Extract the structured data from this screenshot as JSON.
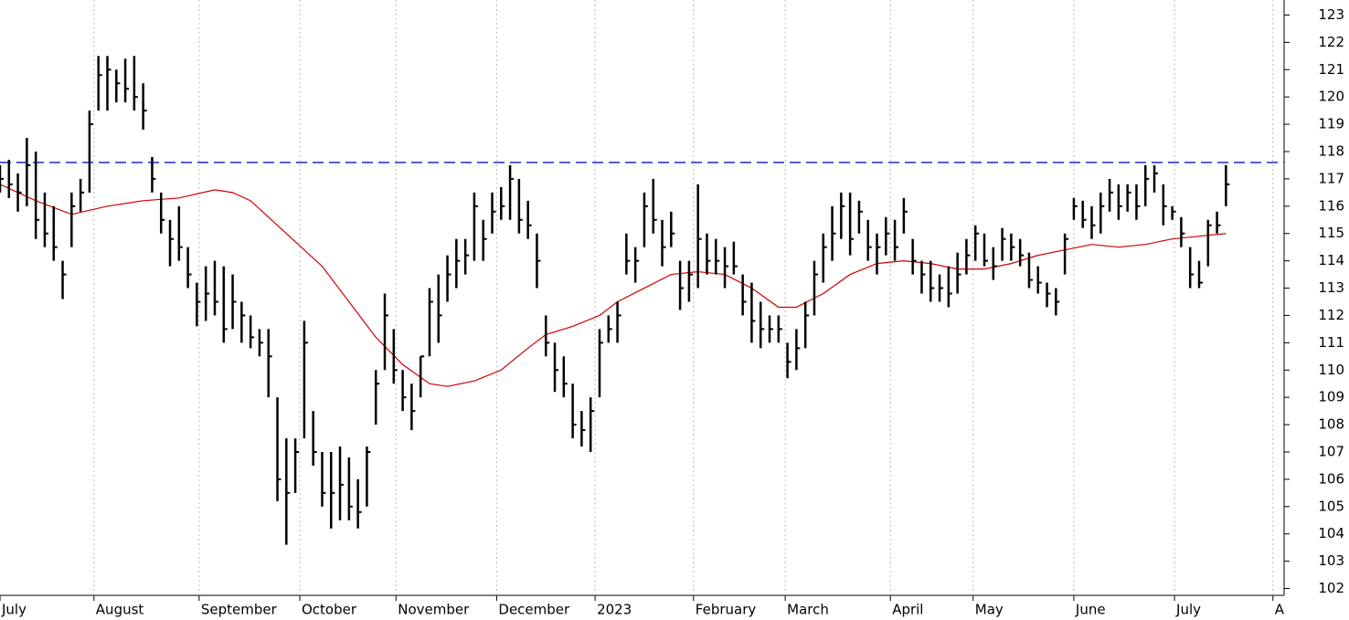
{
  "chart_data": {
    "type": "ohlc",
    "x": [
      0,
      2,
      4,
      6,
      8,
      10,
      12,
      14,
      16,
      18,
      20,
      22,
      24,
      26,
      28,
      30,
      32,
      34,
      36,
      38,
      40,
      42,
      44,
      46,
      48,
      50,
      52,
      54,
      56,
      58,
      60,
      62,
      64,
      66,
      68,
      70,
      72,
      74,
      76,
      78,
      80,
      82,
      84,
      86,
      88,
      90,
      92,
      94,
      96,
      98,
      100,
      102,
      104,
      106,
      108,
      110,
      112,
      114,
      116,
      118,
      120,
      122,
      124,
      126,
      128,
      130,
      132,
      134,
      136,
      138,
      140,
      142,
      144,
      146,
      148,
      150,
      152,
      154,
      156,
      158,
      160,
      162,
      164,
      166,
      168,
      170,
      172,
      174,
      176,
      178,
      180,
      182,
      184,
      186,
      188,
      190,
      192,
      194,
      196,
      198,
      200,
      202,
      204,
      206,
      208,
      210,
      212,
      214,
      216,
      218,
      220,
      222,
      224,
      226,
      228,
      230,
      232,
      234,
      236,
      238,
      240,
      242,
      244,
      246,
      248,
      250,
      252,
      254,
      256,
      258,
      260,
      262,
      264,
      266,
      268,
      270,
      272,
      274
    ],
    "high": [
      117.5,
      117.7,
      117.2,
      118.5,
      118,
      116.5,
      116,
      114,
      116.5,
      117,
      119.5,
      121.5,
      121.5,
      121,
      121.4,
      121.5,
      120.5,
      117.8,
      116.5,
      115.5,
      116,
      114.5,
      113.2,
      113.8,
      114,
      113.8,
      113.5,
      112.5,
      112,
      111.5,
      111.5,
      109,
      107.5,
      107.5,
      111.8,
      108.5,
      107,
      107,
      107.2,
      106.8,
      106,
      107.2,
      110,
      112.8,
      111.5,
      110,
      109.5,
      110.5,
      113,
      113.5,
      114.2,
      114.8,
      114.8,
      116.5,
      115.5,
      116.5,
      116.7,
      117.5,
      117,
      116.2,
      115,
      112,
      111,
      110.5,
      109.5,
      108.5,
      109,
      111.5,
      112,
      112.5,
      115,
      114.5,
      116.5,
      117,
      115.5,
      115.8,
      114,
      114,
      116.8,
      115,
      114.8,
      114.5,
      114.7,
      113.5,
      113.2,
      112.5,
      112,
      112,
      111,
      111.5,
      112.5,
      114,
      115,
      116,
      116.5,
      116.5,
      116.2,
      115.5,
      115,
      115.6,
      115.5,
      116.3,
      114.8,
      114,
      114,
      113.5,
      113.8,
      114.3,
      114.8,
      115.3,
      115,
      114.5,
      115.2,
      115,
      114.8,
      114.3,
      113.8,
      113.2,
      113,
      115,
      116.3,
      116.2,
      116,
      116.5,
      117,
      116.8,
      116.8,
      116.8,
      117.5,
      117.5,
      116.8,
      116,
      115.6,
      114.5,
      114,
      115.5,
      115.8,
      117.5
    ],
    "low": [
      116.5,
      116.3,
      115.8,
      116,
      114.8,
      114.5,
      114,
      112.6,
      114.5,
      115.8,
      116.5,
      119.5,
      119.5,
      119.8,
      119.8,
      119.5,
      118.8,
      116.5,
      115,
      113.8,
      114,
      113,
      111.6,
      111.8,
      112,
      111,
      111.5,
      111,
      110.8,
      110.5,
      109,
      105.2,
      103.6,
      105.5,
      107.5,
      106.5,
      105,
      104.2,
      104.5,
      104.5,
      104.2,
      105,
      108,
      110,
      109.5,
      108.5,
      107.8,
      109,
      110.5,
      111,
      112.5,
      113,
      113.5,
      114,
      114,
      115,
      115.5,
      115.5,
      115,
      114.8,
      113,
      110.5,
      109.2,
      109,
      107.5,
      107.2,
      107,
      109,
      111,
      111,
      113.5,
      113.2,
      114.5,
      115,
      113.8,
      114.5,
      112.2,
      112.5,
      113,
      113.5,
      113.5,
      113,
      113.5,
      112,
      111,
      110.8,
      111,
      111,
      109.7,
      110,
      110.8,
      112,
      113.2,
      114,
      114.8,
      114.2,
      115,
      114,
      113.5,
      114.2,
      114,
      115,
      113.5,
      112.8,
      112.5,
      112.5,
      112.3,
      112.8,
      113.5,
      114,
      113.8,
      113.3,
      114,
      114,
      113.8,
      113,
      112.8,
      112.3,
      112,
      113.5,
      115.5,
      115.2,
      114.8,
      115,
      115.8,
      115.5,
      115.8,
      115.5,
      116,
      116.5,
      115.3,
      115.5,
      114.5,
      113,
      113,
      113.8,
      115,
      116
    ],
    "close": [
      117,
      116.8,
      116.5,
      117.5,
      115.5,
      115,
      114.5,
      113.5,
      116,
      116.5,
      119,
      120.8,
      121,
      120.5,
      120.3,
      120,
      119.5,
      117,
      115.5,
      114.8,
      114.5,
      113.5,
      112.5,
      112.8,
      112.5,
      111.5,
      112.5,
      112,
      111.2,
      111,
      110.5,
      106,
      105.5,
      107,
      111,
      107,
      105.5,
      105.5,
      105.8,
      105,
      104.8,
      107,
      109.5,
      112,
      110,
      109,
      108.5,
      110.5,
      112.5,
      112,
      113.5,
      114,
      114.2,
      116,
      114.8,
      115.8,
      116,
      117,
      115.5,
      115.3,
      114,
      111,
      110,
      109.5,
      108,
      107.8,
      108.5,
      111,
      111.5,
      112,
      114,
      114,
      116,
      115.5,
      114.5,
      115,
      113,
      113.5,
      114.8,
      114,
      114,
      113.8,
      113.8,
      112.5,
      111.8,
      111.5,
      111.5,
      111.5,
      110.3,
      110.8,
      112,
      113.5,
      114.5,
      115,
      116,
      114.8,
      115.8,
      114.5,
      114.5,
      115,
      114.5,
      115.8,
      114,
      113.5,
      113,
      113,
      112.8,
      113.5,
      114.2,
      115,
      114,
      113.8,
      114.8,
      114.5,
      114.2,
      113.3,
      113.2,
      112.8,
      112.5,
      114.8,
      116,
      115.5,
      115.3,
      116,
      116.5,
      116,
      116.5,
      116,
      117,
      117.2,
      116,
      115.8,
      115,
      113.5,
      113.2,
      115.3,
      115.3,
      116.8
    ],
    "bar_color": "#000000",
    "moving_average": {
      "color": "#d00000",
      "x": [
        0,
        8,
        16,
        24,
        32,
        40,
        48,
        52,
        56,
        60,
        66,
        72,
        78,
        84,
        90,
        96,
        100,
        106,
        112,
        118,
        122,
        128,
        134,
        138,
        144,
        150,
        156,
        162,
        168,
        174,
        178,
        184,
        190,
        196,
        202,
        208,
        214,
        220,
        226,
        232,
        238,
        244,
        250,
        256,
        262,
        268,
        274
      ],
      "values": [
        116.8,
        116.2,
        115.7,
        116,
        116.2,
        116.3,
        116.6,
        116.5,
        116.2,
        115.6,
        114.7,
        113.8,
        112.5,
        111.2,
        110.2,
        109.5,
        109.4,
        109.6,
        110,
        110.8,
        111.3,
        111.6,
        112,
        112.5,
        113,
        113.5,
        113.6,
        113.5,
        113,
        112.3,
        112.3,
        112.8,
        113.5,
        113.9,
        114,
        113.9,
        113.7,
        113.7,
        113.9,
        114.2,
        114.4,
        114.6,
        114.5,
        114.6,
        114.8,
        114.9,
        115
      ]
    },
    "reference_line": {
      "value": 117.6,
      "color": "#1010c0"
    },
    "xlim": [
      0,
      287
    ],
    "xticks": [
      {
        "value": 0,
        "label": "July"
      },
      {
        "value": 21,
        "label": "August"
      },
      {
        "value": 44.5,
        "label": "September"
      },
      {
        "value": 67,
        "label": "October"
      },
      {
        "value": 88.5,
        "label": "November"
      },
      {
        "value": 111,
        "label": "December"
      },
      {
        "value": 133,
        "label": "2023"
      },
      {
        "value": 155,
        "label": "February"
      },
      {
        "value": 175.5,
        "label": "March"
      },
      {
        "value": 199,
        "label": "April"
      },
      {
        "value": 217.5,
        "label": "May"
      },
      {
        "value": 240,
        "label": "June"
      },
      {
        "value": 262.5,
        "label": "July"
      },
      {
        "value": 284.5,
        "label": "A"
      }
    ],
    "ylim": [
      101.75,
      123.55
    ],
    "yticks": [
      102,
      103,
      104,
      105,
      106,
      107,
      108,
      109,
      110,
      111,
      112,
      113,
      114,
      115,
      116,
      117,
      118,
      119,
      120,
      121,
      122,
      123
    ],
    "grid": true
  }
}
